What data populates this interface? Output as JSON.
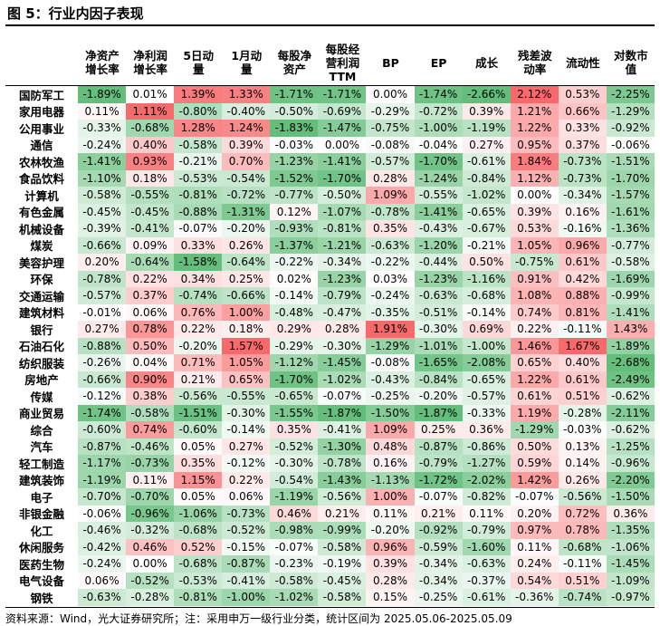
{
  "title": "图 5：行业内因子表现",
  "source": "资料来源：Wind，光大证券研究所；注：采用申万一级行业分类，统计区间为 2025.05.06-2025.05.09",
  "chart_data": {
    "type": "table",
    "columns": [
      "净资产\n增长率",
      "净利润\n增长率",
      "5日动\n量",
      "1月动\n量",
      "每股净\n资产",
      "每股经\n营利润\nTTM",
      "BP",
      "EP",
      "成长",
      "残差波\n动率",
      "流动性",
      "对数市\n值"
    ],
    "rows": [
      {
        "name": "国防军工",
        "values": [
          "-1.89%",
          "0.01%",
          "1.39%",
          "1.33%",
          "-1.71%",
          "-1.71%",
          "0.00%",
          "-1.74%",
          "-2.66%",
          "2.12%",
          "0.53%",
          "-2.25%"
        ]
      },
      {
        "name": "家用电器",
        "values": [
          "0.11%",
          "1.11%",
          "-0.80%",
          "-0.40%",
          "-0.50%",
          "-0.69%",
          "-0.29%",
          "-0.72%",
          "0.39%",
          "1.21%",
          "0.66%",
          "-1.29%"
        ]
      },
      {
        "name": "公用事业",
        "values": [
          "-0.33%",
          "-0.68%",
          "1.28%",
          "1.24%",
          "-1.83%",
          "-1.47%",
          "-0.75%",
          "-1.00%",
          "-1.19%",
          "1.22%",
          "0.33%",
          "-0.92%"
        ]
      },
      {
        "name": "通信",
        "values": [
          "-0.24%",
          "0.40%",
          "-0.58%",
          "0.39%",
          "-0.03%",
          "0.00%",
          "-0.08%",
          "-0.04%",
          "0.27%",
          "0.95%",
          "0.37%",
          "-0.06%"
        ]
      },
      {
        "name": "农林牧渔",
        "values": [
          "-1.41%",
          "0.93%",
          "-0.21%",
          "0.70%",
          "-1.23%",
          "-1.41%",
          "-0.57%",
          "-1.70%",
          "-0.61%",
          "1.84%",
          "-0.73%",
          "-1.51%"
        ]
      },
      {
        "name": "食品饮料",
        "values": [
          "-1.10%",
          "0.18%",
          "-0.53%",
          "-0.54%",
          "-1.52%",
          "-1.70%",
          "0.28%",
          "-1.24%",
          "-0.84%",
          "1.12%",
          "-0.73%",
          "-1.70%"
        ]
      },
      {
        "name": "计算机",
        "values": [
          "-0.58%",
          "-0.55%",
          "-0.81%",
          "-0.72%",
          "-0.77%",
          "-0.50%",
          "1.09%",
          "-0.55%",
          "-1.02%",
          "0.00%",
          "-0.34%",
          "-1.57%"
        ]
      },
      {
        "name": "有色金属",
        "values": [
          "-0.45%",
          "-0.45%",
          "-0.88%",
          "-1.31%",
          "0.12%",
          "-1.07%",
          "-0.78%",
          "-1.41%",
          "-0.65%",
          "0.39%",
          "0.16%",
          "-1.61%"
        ]
      },
      {
        "name": "机械设备",
        "values": [
          "-0.39%",
          "-0.41%",
          "-0.07%",
          "-0.20%",
          "-0.93%",
          "-0.81%",
          "0.35%",
          "-0.43%",
          "-0.67%",
          "0.53%",
          "-0.16%",
          "-1.36%"
        ]
      },
      {
        "name": "煤炭",
        "values": [
          "-0.66%",
          "0.09%",
          "0.33%",
          "0.26%",
          "-1.37%",
          "-1.21%",
          "-0.63%",
          "-1.20%",
          "-0.21%",
          "1.05%",
          "0.96%",
          "-0.77%"
        ]
      },
      {
        "name": "美容护理",
        "values": [
          "0.20%",
          "-0.64%",
          "-1.58%",
          "-0.64%",
          "-0.22%",
          "-0.34%",
          "-0.22%",
          "-0.44%",
          "0.50%",
          "-0.75%",
          "0.61%",
          "-0.58%"
        ]
      },
      {
        "name": "环保",
        "values": [
          "-0.78%",
          "0.22%",
          "0.34%",
          "0.25%",
          "0.02%",
          "-1.23%",
          "0.03%",
          "-1.23%",
          "-1.16%",
          "0.91%",
          "0.42%",
          "-1.69%"
        ]
      },
      {
        "name": "交通运输",
        "values": [
          "-0.57%",
          "0.37%",
          "-0.74%",
          "-0.66%",
          "-0.14%",
          "-0.79%",
          "-0.24%",
          "-0.63%",
          "-0.68%",
          "1.08%",
          "0.88%",
          "-0.99%"
        ]
      },
      {
        "name": "建筑材料",
        "values": [
          "-0.01%",
          "0.06%",
          "0.76%",
          "1.00%",
          "-0.48%",
          "-0.47%",
          "-0.35%",
          "-0.51%",
          "-0.14%",
          "0.74%",
          "0.81%",
          "-1.41%"
        ]
      },
      {
        "name": "银行",
        "values": [
          "0.27%",
          "0.78%",
          "0.22%",
          "0.18%",
          "0.29%",
          "0.28%",
          "1.91%",
          "-0.30%",
          "0.69%",
          "0.22%",
          "-0.11%",
          "1.43%"
        ]
      },
      {
        "name": "石油石化",
        "values": [
          "-0.88%",
          "0.50%",
          "-0.20%",
          "1.57%",
          "-0.29%",
          "-0.30%",
          "-1.29%",
          "-1.01%",
          "-1.00%",
          "1.46%",
          "1.67%",
          "-1.89%"
        ]
      },
      {
        "name": "纺织服装",
        "values": [
          "-0.26%",
          "0.04%",
          "0.71%",
          "1.05%",
          "-1.12%",
          "-1.45%",
          "-0.08%",
          "-1.65%",
          "-2.08%",
          "0.65%",
          "0.40%",
          "-2.68%"
        ]
      },
      {
        "name": "房地产",
        "values": [
          "-0.66%",
          "0.90%",
          "0.21%",
          "0.65%",
          "-1.70%",
          "-1.02%",
          "-0.43%",
          "-0.84%",
          "-0.65%",
          "1.22%",
          "0.61%",
          "-2.49%"
        ]
      },
      {
        "name": "传媒",
        "values": [
          "-0.12%",
          "0.38%",
          "-0.56%",
          "-0.55%",
          "-0.65%",
          "-0.07%",
          "-0.25%",
          "-0.20%",
          "-0.57%",
          "0.61%",
          "0.51%",
          "-0.62%"
        ]
      },
      {
        "name": "商业贸易",
        "values": [
          "-1.74%",
          "-0.58%",
          "-1.51%",
          "-0.30%",
          "-1.55%",
          "-1.87%",
          "-1.50%",
          "-1.87%",
          "-0.33%",
          "1.19%",
          "-0.28%",
          "-2.11%"
        ]
      },
      {
        "name": "综合",
        "values": [
          "-0.60%",
          "0.74%",
          "-0.60%",
          "-0.14%",
          "0.35%",
          "-0.41%",
          "1.09%",
          "0.25%",
          "0.36%",
          "-1.29%",
          "-0.03%",
          "-0.62%"
        ]
      },
      {
        "name": "汽车",
        "values": [
          "-0.87%",
          "-0.46%",
          "0.05%",
          "0.27%",
          "-0.52%",
          "-1.30%",
          "0.48%",
          "-0.87%",
          "-0.86%",
          "0.50%",
          "0.13%",
          "-1.25%"
        ]
      },
      {
        "name": "轻工制造",
        "values": [
          "-1.17%",
          "-0.73%",
          "0.35%",
          "-0.12%",
          "-0.30%",
          "-0.78%",
          "0.16%",
          "-0.79%",
          "-1.27%",
          "0.59%",
          "0.14%",
          "-0.96%"
        ]
      },
      {
        "name": "建筑装饰",
        "values": [
          "-1.19%",
          "0.11%",
          "1.15%",
          "0.22%",
          "-0.54%",
          "-1.43%",
          "-1.13%",
          "-1.72%",
          "-2.02%",
          "1.42%",
          "0.26%",
          "-2.20%"
        ]
      },
      {
        "name": "电子",
        "values": [
          "-0.70%",
          "-0.70%",
          "0.05%",
          "0.06%",
          "-1.19%",
          "-0.56%",
          "1.00%",
          "-0.07%",
          "-0.82%",
          "-0.07%",
          "-0.56%",
          "-1.50%"
        ]
      },
      {
        "name": "非银金融",
        "values": [
          "-0.06%",
          "-0.96%",
          "-1.06%",
          "-0.73%",
          "0.46%",
          "0.21%",
          "0.11%",
          "0.21%",
          "0.11%",
          "0.20%",
          "0.72%",
          "0.36%"
        ]
      },
      {
        "name": "化工",
        "values": [
          "-0.46%",
          "-0.32%",
          "-0.68%",
          "-0.52%",
          "-0.98%",
          "-0.99%",
          "-0.20%",
          "-0.92%",
          "-0.79%",
          "0.97%",
          "0.78%",
          "-1.35%"
        ]
      },
      {
        "name": "休闲服务",
        "values": [
          "-0.42%",
          "0.46%",
          "0.52%",
          "-0.15%",
          "-0.07%",
          "-0.58%",
          "0.96%",
          "-0.59%",
          "-1.60%",
          "0.11%",
          "-0.68%",
          "-1.06%"
        ]
      },
      {
        "name": "医药生物",
        "values": [
          "-0.24%",
          "0.00%",
          "-0.68%",
          "-0.87%",
          "-0.23%",
          "-0.19%",
          "0.39%",
          "-0.34%",
          "-0.63%",
          "0.24%",
          "-0.11%",
          "-1.45%"
        ]
      },
      {
        "name": "电气设备",
        "values": [
          "0.06%",
          "-0.52%",
          "-0.53%",
          "-0.41%",
          "-0.58%",
          "-0.45%",
          "0.28%",
          "-0.34%",
          "-0.37%",
          "0.54%",
          "0.51%",
          "-1.09%"
        ]
      },
      {
        "name": "钢铁",
        "values": [
          "-0.63%",
          "-0.28%",
          "-0.81%",
          "-1.00%",
          "-1.02%",
          "-0.58%",
          "0.15%",
          "-0.25%",
          "-0.61%",
          "-0.36%",
          "-0.74%",
          "-0.97%"
        ]
      }
    ],
    "color_scale": {
      "positive": "#f8696b",
      "negative": "#63be7b",
      "neutral": "#ffffff"
    }
  }
}
